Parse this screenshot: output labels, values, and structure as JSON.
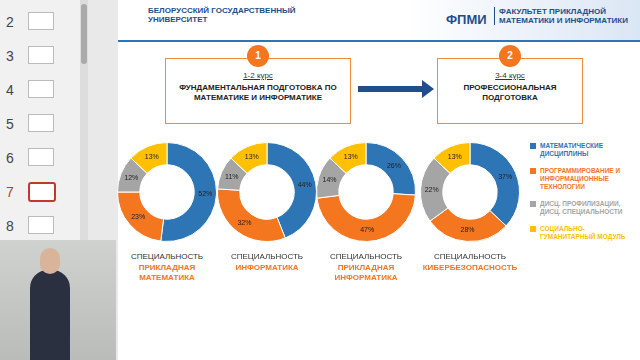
{
  "sidebar": {
    "slides": [
      2,
      3,
      4,
      5,
      6,
      7,
      8
    ],
    "active": 7
  },
  "header": {
    "university": "БЕЛОРУССКИЙ ГОСУДАРСТВЕННЫЙ УНИВЕРСИТЕТ",
    "faculty_short": "ФПМИ",
    "faculty": "ФАКУЛЬТЕТ ПРИКЛАДНОЙ МАТЕМАТИКИ И ИНФОРМАТИКИ"
  },
  "stages": [
    {
      "number": "1",
      "course": "1-2 курс",
      "text": "ФУНДАМЕНТАЛЬНАЯ ПОДГОТОВКА ПО МАТЕМАТИКЕ И ИНФОРМАТИКЕ"
    },
    {
      "number": "2",
      "course": "3-4 курс",
      "text": "ПРОФЕССИОНАЛЬНАЯ ПОДГОТОВКА"
    }
  ],
  "chart_data": [
    {
      "type": "doughnut",
      "title": "СПЕЦИАЛЬНОСТЬ",
      "subtitle": "ПРИКЛАДНАЯ МАТЕМАТИКА",
      "categories": [
        "МАТЕМАТИЧЕСКИЕ ДИСЦИПЛИНЫ",
        "ПРОГРАММИРОВАНИЕ И ИНФОРМАЦИОННЫЕ ТЕХНОЛОГИИ",
        "ДИСЦ. ПРОФИЛИЗАЦИИ, ДИСЦ. СПЕЦИАЛЬНОСТИ",
        "СОЦИАЛЬНО-ГУМАНИТАРНЫЙ МОДУЛЬ"
      ],
      "values": [
        52,
        23,
        12,
        13
      ],
      "value_labels": [
        "52%",
        "23%",
        "12%",
        "13%"
      ],
      "colors": [
        "#2e75b6",
        "#f4761f",
        "#a5a5a5",
        "#ffc000"
      ],
      "data_labels": true
    },
    {
      "type": "doughnut",
      "title": "СПЕЦИАЛЬНОСТЬ",
      "subtitle": "ИНФОРМАТИКА",
      "categories": [
        "МАТЕМАТИЧЕСКИЕ ДИСЦИПЛИНЫ",
        "ПРОГРАММИРОВАНИЕ И ИНФОРМАЦИОННЫЕ ТЕХНОЛОГИИ",
        "ДИСЦ. ПРОФИЛИЗАЦИИ, ДИСЦ. СПЕЦИАЛЬНОСТИ",
        "СОЦИАЛЬНО-ГУМАНИТАРНЫЙ МОДУЛЬ"
      ],
      "values": [
        44,
        32,
        11,
        13
      ],
      "value_labels": [
        "44%",
        "32%",
        "11%",
        "13%"
      ],
      "colors": [
        "#2e75b6",
        "#f4761f",
        "#a5a5a5",
        "#ffc000"
      ],
      "data_labels": true
    },
    {
      "type": "doughnut",
      "title": "СПЕЦИАЛЬНОСТЬ",
      "subtitle": "ПРИКЛАДНАЯ ИНФОРМАТИКА",
      "categories": [
        "МАТЕМАТИЧЕСКИЕ ДИСЦИПЛИНЫ",
        "ПРОГРАММИРОВАНИЕ И ИНФОРМАЦИОННЫЕ ТЕХНОЛОГИИ",
        "ДИСЦ. ПРОФИЛИЗАЦИИ, ДИСЦ. СПЕЦИАЛЬНОСТИ",
        "СОЦИАЛЬНО-ГУМАНИТАРНЫЙ МОДУЛЬ"
      ],
      "values": [
        26,
        47,
        14,
        13
      ],
      "value_labels": [
        "26%",
        "47%",
        "14%",
        "13%"
      ],
      "colors": [
        "#2e75b6",
        "#f4761f",
        "#a5a5a5",
        "#ffc000"
      ],
      "data_labels": true
    },
    {
      "type": "doughnut",
      "title": "СПЕЦИАЛЬНОСТЬ",
      "subtitle": "КИБЕРБЕЗОПАСНОСТЬ",
      "categories": [
        "МАТЕМАТИЧЕСКИЕ ДИСЦИПЛИНЫ",
        "ПРОГРАММИРОВАНИЕ И ИНФОРМАЦИОННЫЕ ТЕХНОЛОГИИ",
        "ДИСЦ. ПРОФИЛИЗАЦИИ, ДИСЦ. СПЕЦИАЛЬНОСТИ",
        "СОЦИАЛЬНО-ГУМАНИТАРНЫЙ МОДУЛЬ"
      ],
      "values": [
        37,
        28,
        22,
        13
      ],
      "value_labels": [
        "37%",
        "28%",
        "22%",
        "13%"
      ],
      "colors": [
        "#2e75b6",
        "#f4761f",
        "#a5a5a5",
        "#ffc000"
      ],
      "data_labels": true,
      "legend": "right"
    }
  ]
}
